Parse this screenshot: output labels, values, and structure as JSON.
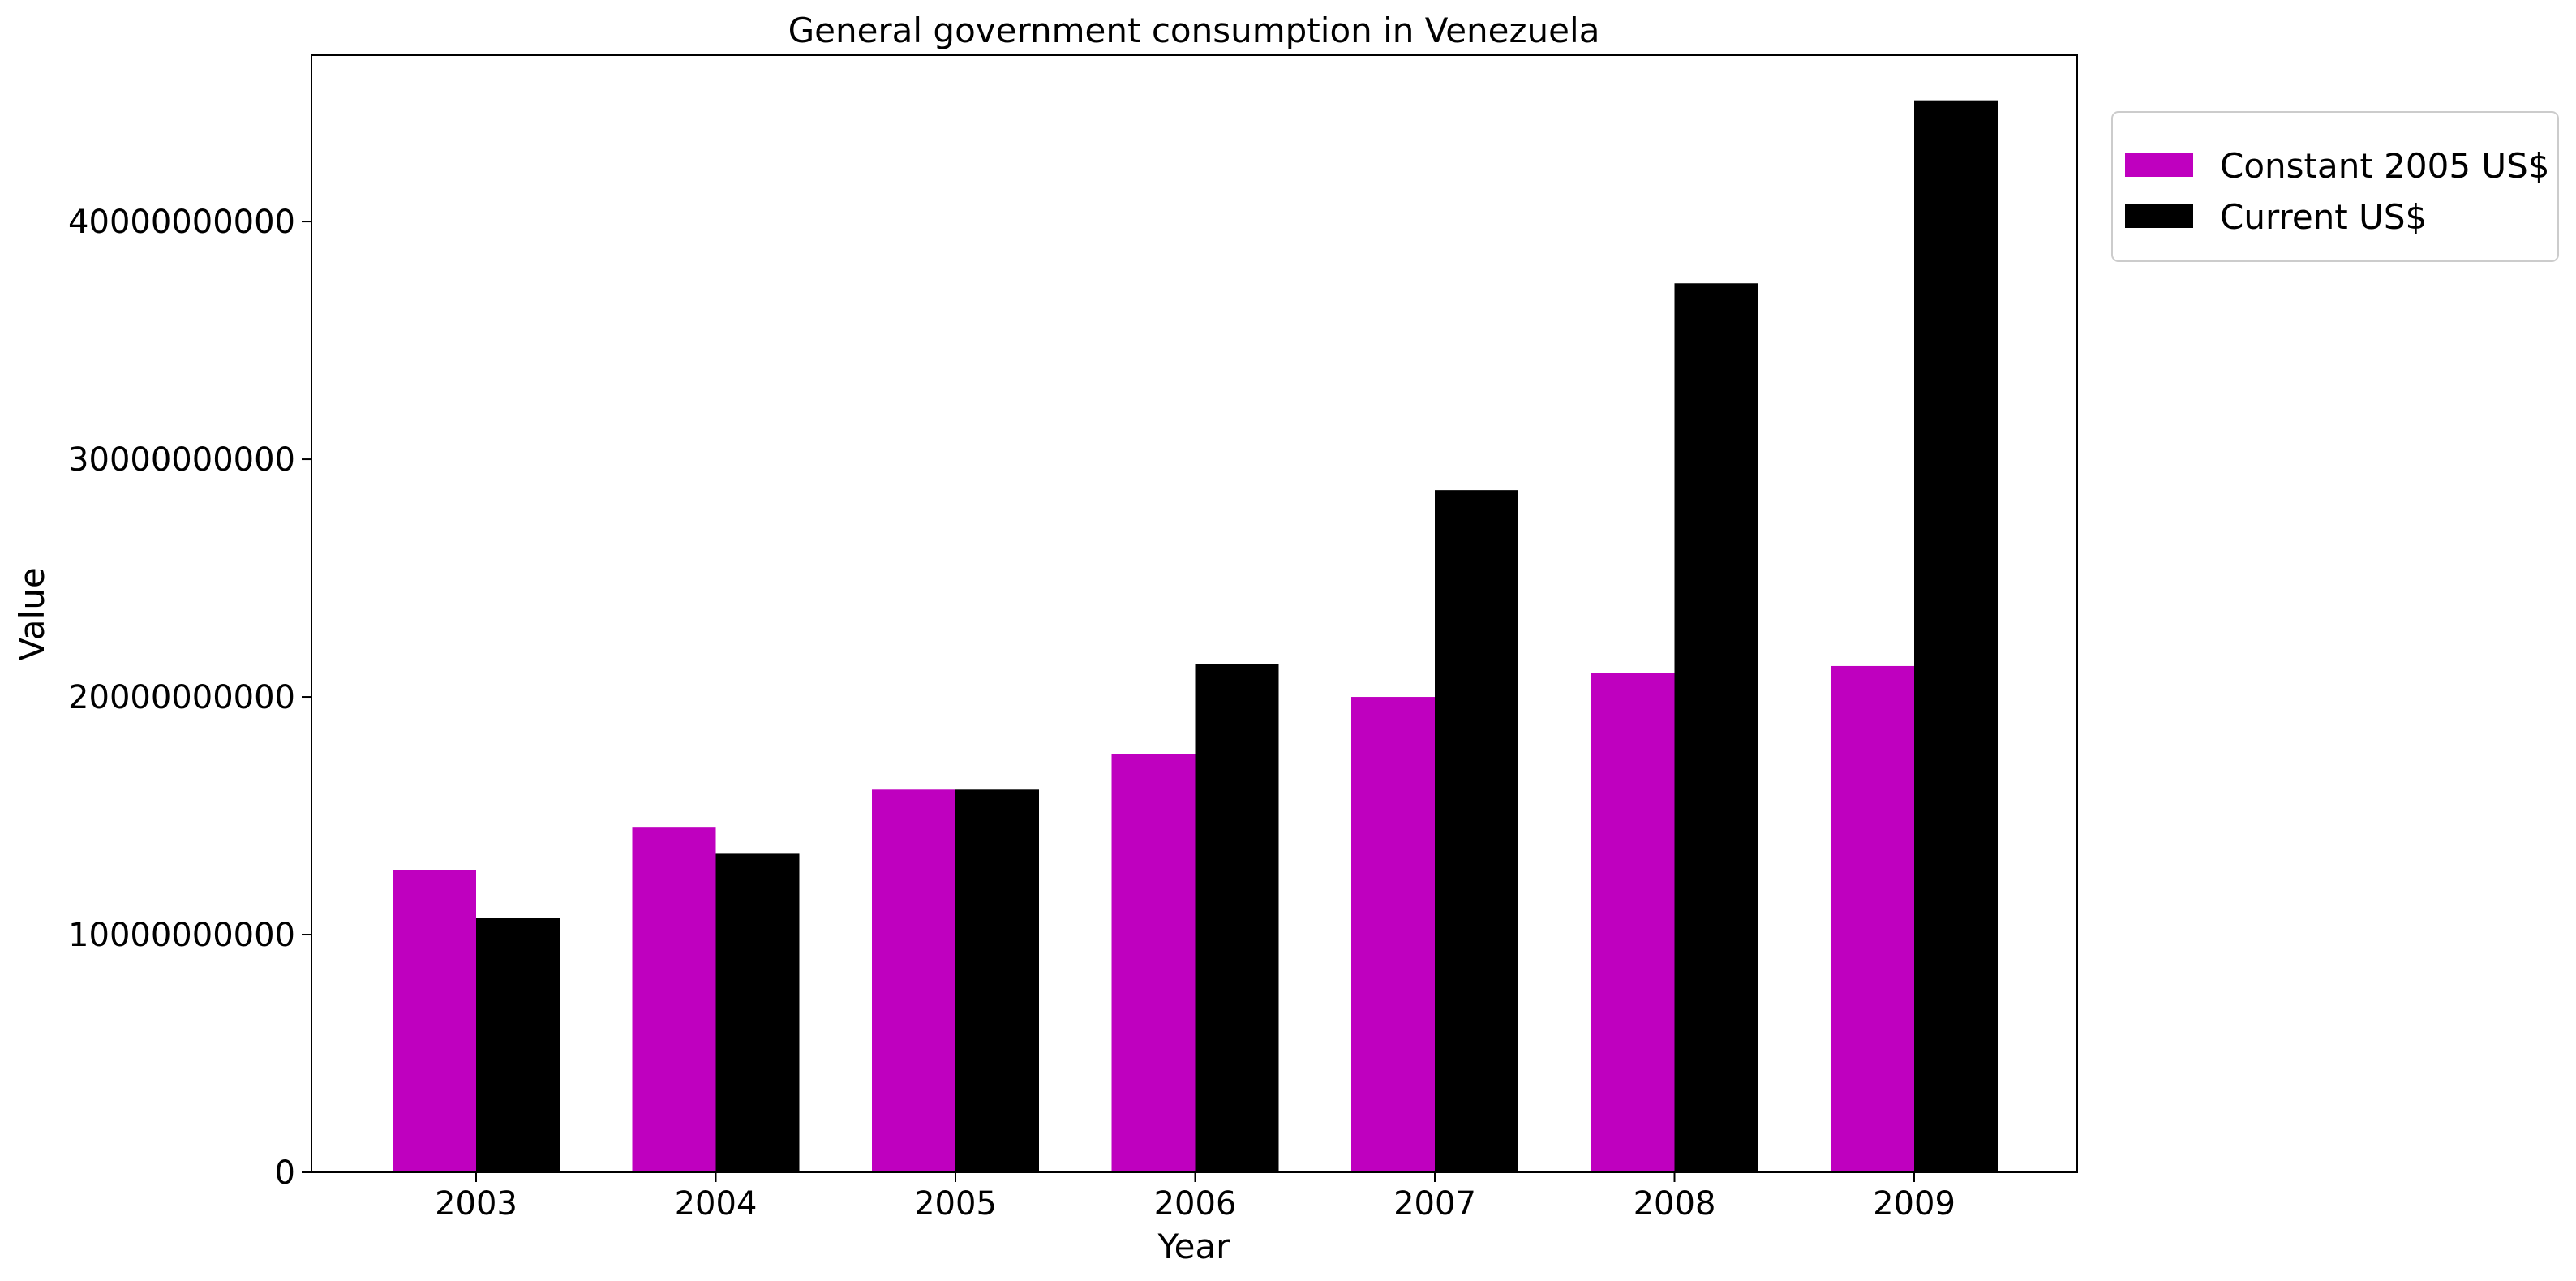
{
  "chart_data": {
    "type": "bar",
    "title": "General government consumption in Venezuela",
    "xlabel": "Year",
    "ylabel": "Value",
    "categories": [
      "2003",
      "2004",
      "2005",
      "2006",
      "2007",
      "2008",
      "2009"
    ],
    "series": [
      {
        "name": "Constant 2005 US$",
        "color": "#bf00bf",
        "values": [
          12700000000,
          14500000000,
          16100000000,
          17600000000,
          20000000000,
          21000000000,
          21300000000
        ]
      },
      {
        "name": "Current US$",
        "color": "#000000",
        "values": [
          10700000000,
          13400000000,
          16100000000,
          21400000000,
          28700000000,
          37400000000,
          45100000000
        ]
      }
    ],
    "yticks": [
      0,
      10000000000,
      20000000000,
      30000000000,
      40000000000
    ],
    "ytick_labels": [
      "0",
      "10000000000",
      "20000000000",
      "30000000000",
      "40000000000"
    ],
    "ylim": [
      0,
      47000000000
    ],
    "grid": false,
    "legend_position": "outside-top-right"
  }
}
